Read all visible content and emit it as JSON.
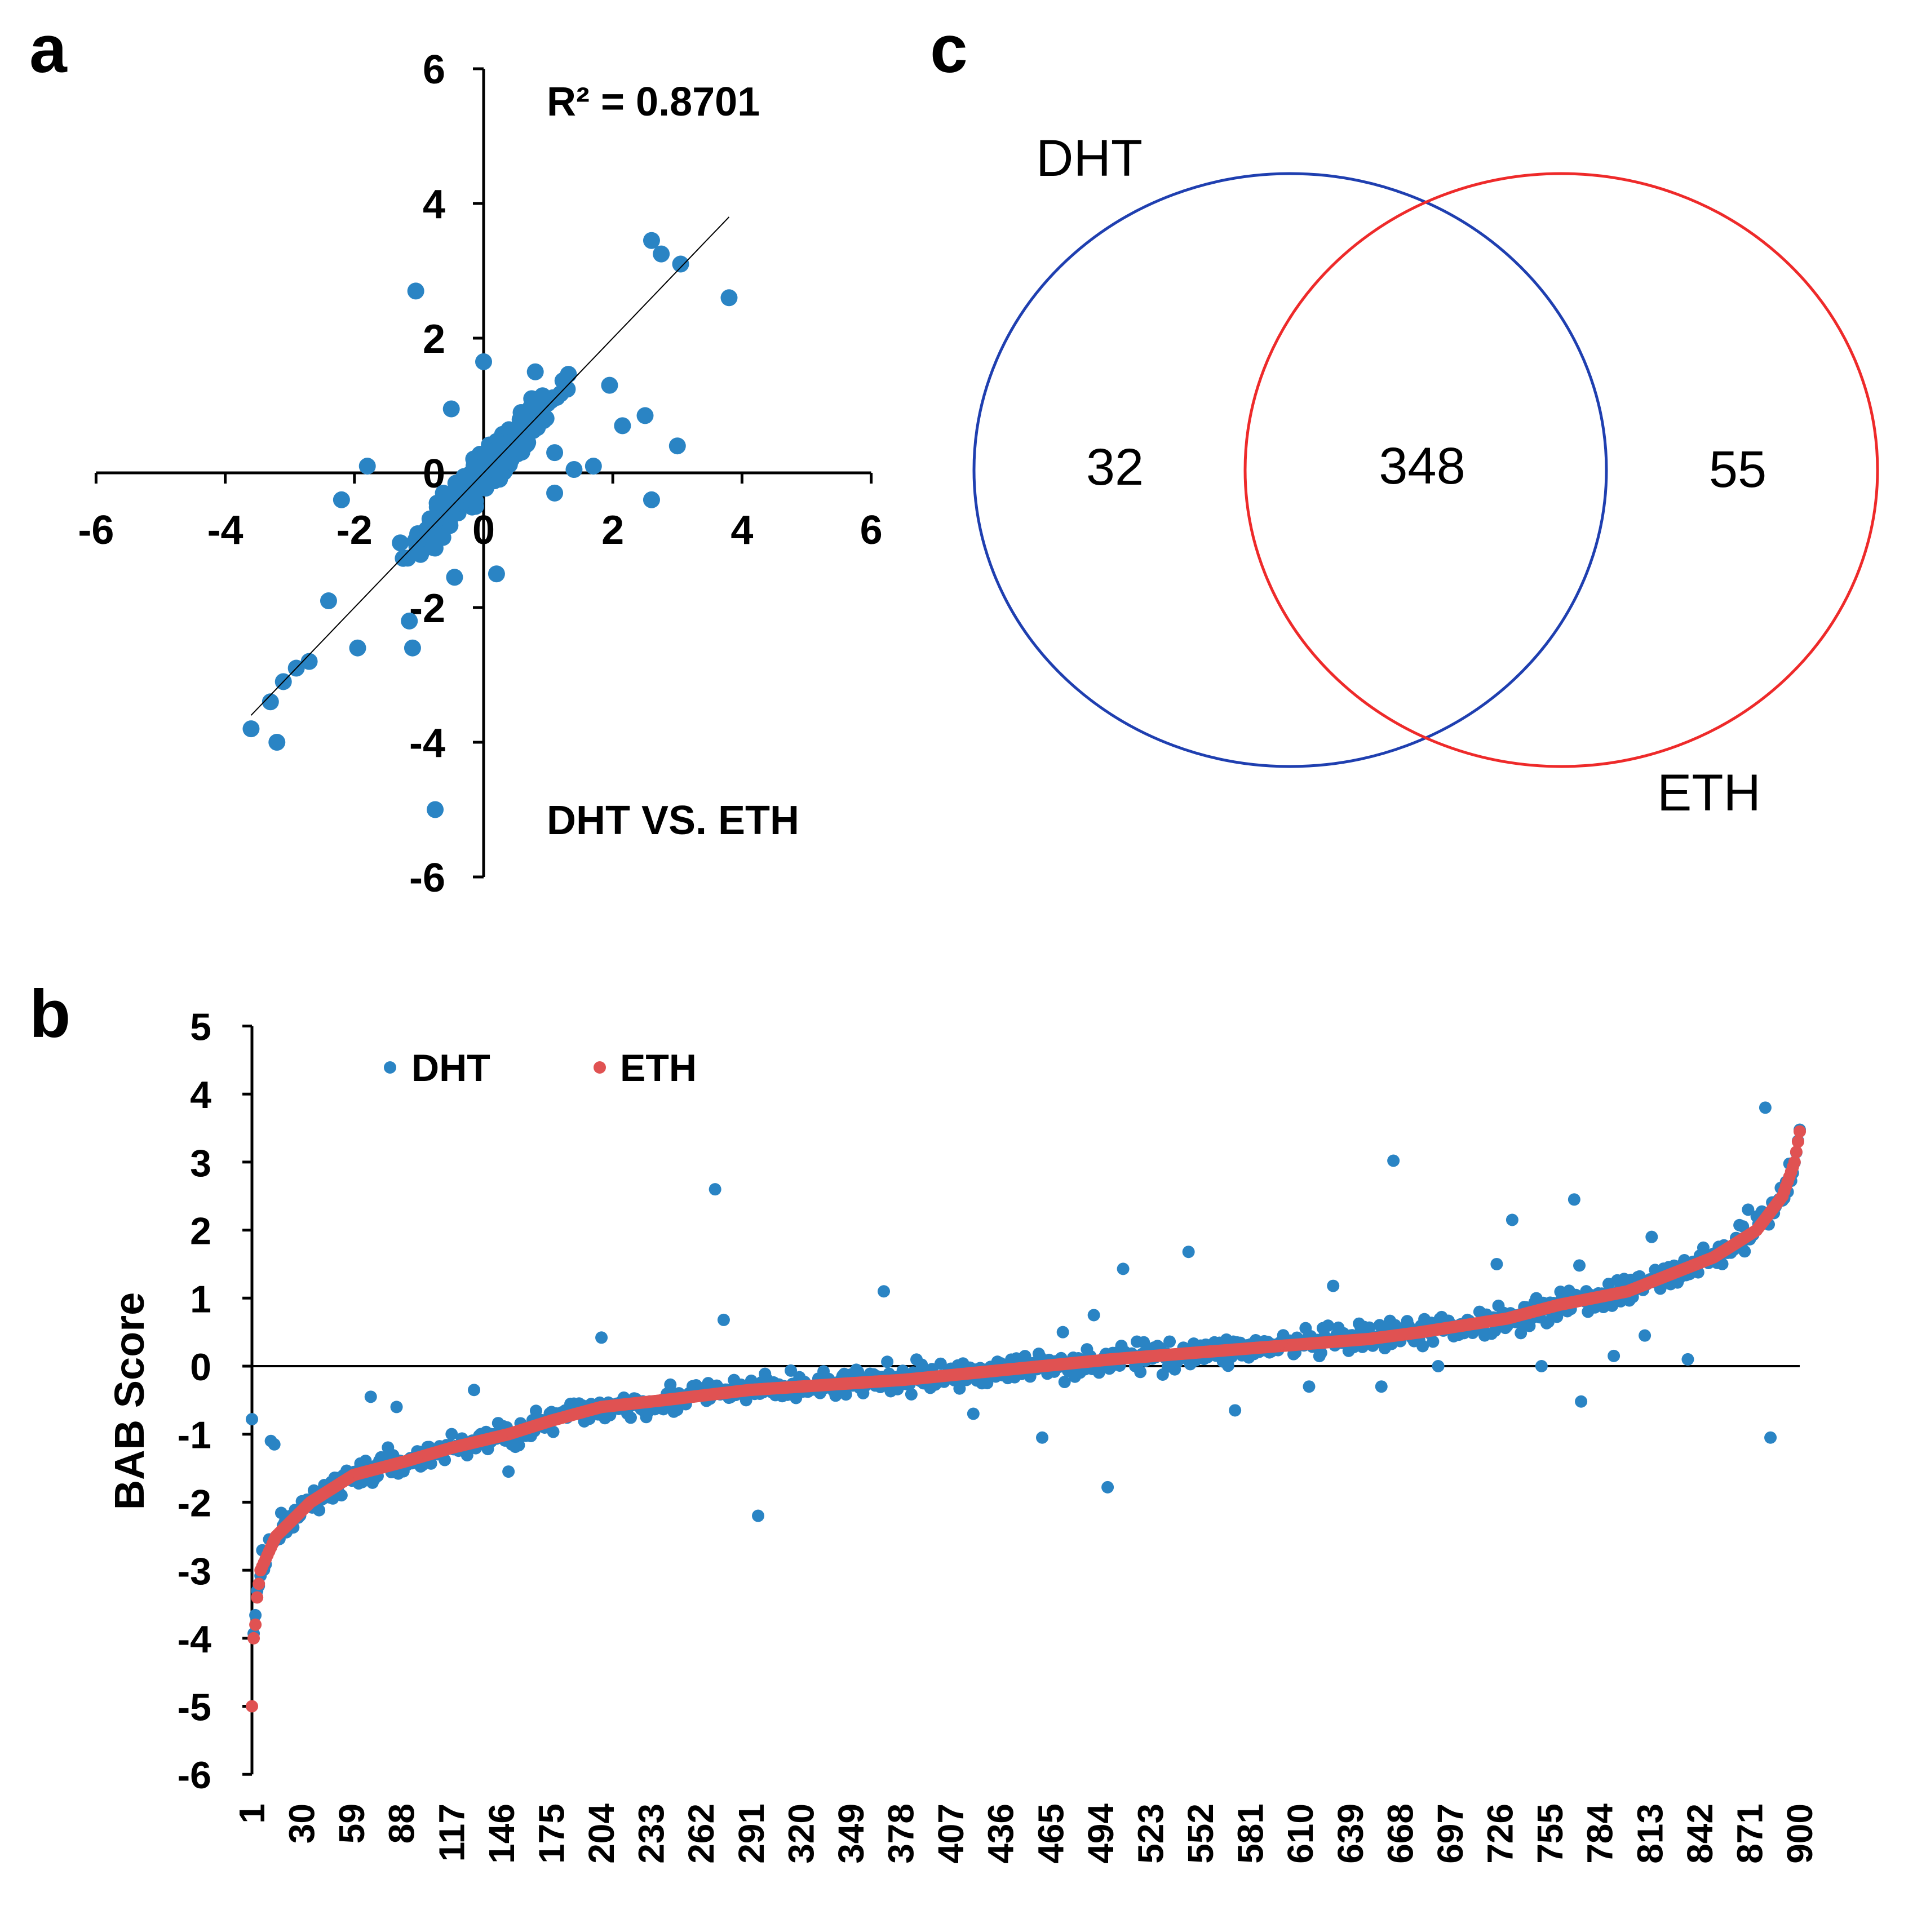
{
  "panel_labels": {
    "a": "a",
    "b": "b",
    "c": "c"
  },
  "colors": {
    "dht": "#2a84c4",
    "eth": "#e05252",
    "venn_dht": "#1f3fb0",
    "venn_eth": "#ee2a2a"
  },
  "chart_data": [
    {
      "id": "a",
      "type": "scatter",
      "title": "DHT VS. ETH",
      "annotation": "R² = 0.8701",
      "xlim": [
        -6,
        6
      ],
      "ylim": [
        -6,
        6
      ],
      "x_ticks": [
        "-6",
        "-4",
        "-2",
        "0",
        "2",
        "4",
        "6"
      ],
      "y_ticks": [
        "6",
        "4",
        "2",
        "0",
        "-2",
        "-4",
        "-6"
      ],
      "trendline": [
        [
          -3.6,
          -3.6
        ],
        [
          3.8,
          3.8
        ]
      ],
      "bulk_points": {
        "count": 380,
        "x_range": [
          -3.4,
          3.0
        ],
        "noise": 0.25
      },
      "outliers": [
        [
          -1.05,
          2.7
        ],
        [
          3.8,
          2.6
        ],
        [
          -0.75,
          -5.0
        ],
        [
          -3.2,
          -4.0
        ],
        [
          -3.6,
          -3.8
        ],
        [
          2.6,
          -0.4
        ],
        [
          3.0,
          0.4
        ],
        [
          2.5,
          0.85
        ],
        [
          2.15,
          0.7
        ],
        [
          -1.8,
          0.1
        ],
        [
          -2.2,
          -0.4
        ],
        [
          -1.1,
          -2.6
        ],
        [
          -1.15,
          -2.2
        ],
        [
          -2.4,
          -1.9
        ],
        [
          -1.95,
          -2.6
        ],
        [
          -0.5,
          0.95
        ],
        [
          0.0,
          1.65
        ],
        [
          1.7,
          0.1
        ],
        [
          1.4,
          0.05
        ],
        [
          1.1,
          -0.3
        ],
        [
          0.2,
          -1.5
        ],
        [
          -0.45,
          -1.55
        ],
        [
          2.6,
          3.45
        ],
        [
          3.05,
          3.1
        ],
        [
          2.75,
          3.25
        ],
        [
          1.95,
          1.3
        ],
        [
          1.1,
          0.3
        ],
        [
          0.8,
          1.5
        ],
        [
          -3.3,
          -3.4
        ],
        [
          -3.1,
          -3.1
        ],
        [
          -2.9,
          -2.9
        ],
        [
          -2.7,
          -2.8
        ]
      ]
    },
    {
      "id": "b",
      "type": "scatter",
      "ylabel": "BAB Score",
      "ylim": [
        -6,
        5
      ],
      "y_ticks": [
        "5",
        "4",
        "3",
        "2",
        "1",
        "0",
        "-1",
        "-2",
        "-3",
        "-4",
        "-5",
        "-6"
      ],
      "x_ticks": [
        "1",
        "30",
        "59",
        "88",
        "117",
        "146",
        "175",
        "204",
        "233",
        "262",
        "291",
        "320",
        "349",
        "378",
        "407",
        "436",
        "465",
        "494",
        "523",
        "552",
        "581",
        "610",
        "639",
        "668",
        "697",
        "726",
        "755",
        "784",
        "813",
        "842",
        "871",
        "900"
      ],
      "n": 900,
      "legend": [
        {
          "name": "DHT"
        },
        {
          "name": "ETH"
        }
      ],
      "eth_curve": [
        [
          1,
          -5
        ],
        [
          2,
          -4
        ],
        [
          3,
          -3.8
        ],
        [
          4,
          -3.4
        ],
        [
          6,
          -3.0
        ],
        [
          15,
          -2.5
        ],
        [
          35,
          -2.0
        ],
        [
          60,
          -1.6
        ],
        [
          90,
          -1.4
        ],
        [
          117,
          -1.2
        ],
        [
          150,
          -1.0
        ],
        [
          175,
          -0.8
        ],
        [
          204,
          -0.6
        ],
        [
          240,
          -0.5
        ],
        [
          290,
          -0.35
        ],
        [
          320,
          -0.3
        ],
        [
          380,
          -0.2
        ],
        [
          420,
          -0.1
        ],
        [
          460,
          0.0
        ],
        [
          500,
          0.1
        ],
        [
          550,
          0.2
        ],
        [
          600,
          0.3
        ],
        [
          650,
          0.4
        ],
        [
          680,
          0.5
        ],
        [
          730,
          0.7
        ],
        [
          760,
          0.9
        ],
        [
          800,
          1.1
        ],
        [
          820,
          1.3
        ],
        [
          850,
          1.6
        ],
        [
          875,
          2.0
        ],
        [
          890,
          2.5
        ],
        [
          897,
          3.0
        ],
        [
          900,
          3.45
        ]
      ],
      "dht_noise": 0.18,
      "dht_outliers": [
        [
          1,
          -0.78
        ],
        [
          12,
          -1.1
        ],
        [
          14,
          -1.15
        ],
        [
          70,
          -0.45
        ],
        [
          85,
          -0.6
        ],
        [
          130,
          -0.35
        ],
        [
          150,
          -1.55
        ],
        [
          204,
          0.42
        ],
        [
          270,
          2.6
        ],
        [
          275,
          0.68
        ],
        [
          295,
          -2.2
        ],
        [
          368,
          1.1
        ],
        [
          420,
          -0.7
        ],
        [
          460,
          -1.05
        ],
        [
          472,
          0.5
        ],
        [
          490,
          0.75
        ],
        [
          498,
          -1.78
        ],
        [
          507,
          1.43
        ],
        [
          545,
          1.68
        ],
        [
          572,
          -0.65
        ],
        [
          615,
          -0.3
        ],
        [
          629,
          1.18
        ],
        [
          657,
          -0.3
        ],
        [
          664,
          3.02
        ],
        [
          690,
          0.0
        ],
        [
          724,
          1.5
        ],
        [
          733,
          2.15
        ],
        [
          750,
          0.0
        ],
        [
          769,
          2.45
        ],
        [
          772,
          1.48
        ],
        [
          773,
          -0.52
        ],
        [
          792,
          0.15
        ],
        [
          810,
          0.45
        ],
        [
          814,
          1.9
        ],
        [
          835,
          0.1
        ],
        [
          880,
          3.8
        ],
        [
          883,
          -1.05
        ],
        [
          870,
          2.3
        ]
      ]
    },
    {
      "id": "c",
      "type": "venn",
      "sets": [
        {
          "name": "DHT",
          "only": "32"
        },
        {
          "name": "ETH",
          "only": "55"
        }
      ],
      "intersection": "348"
    }
  ]
}
